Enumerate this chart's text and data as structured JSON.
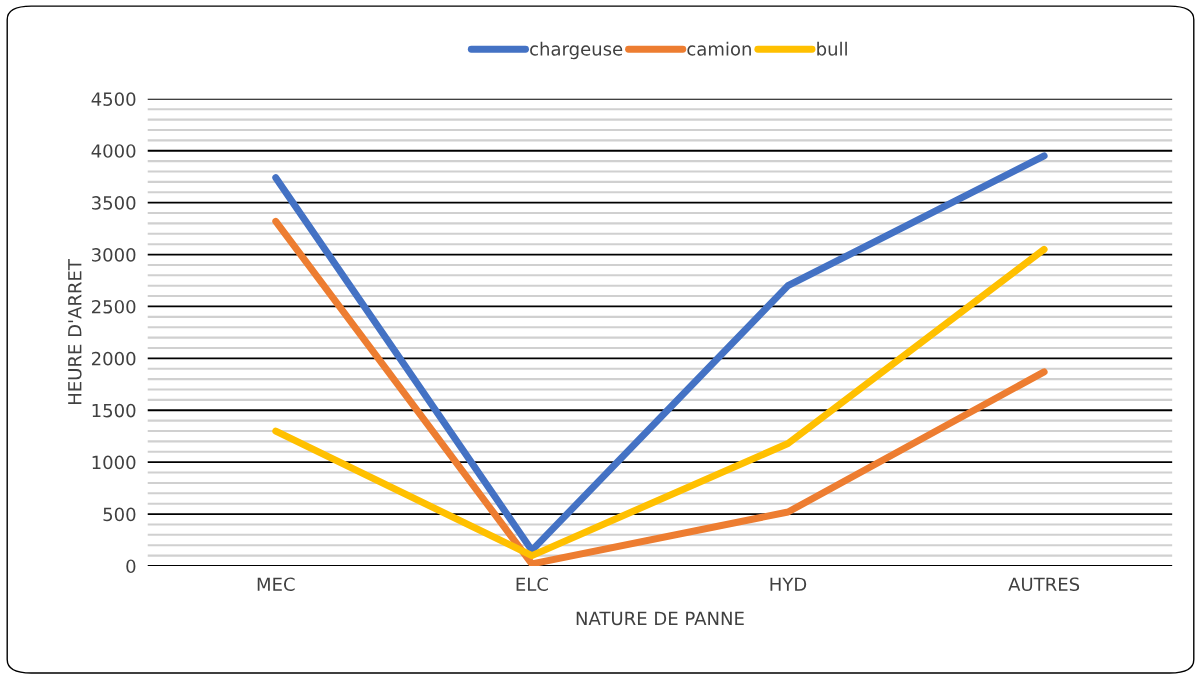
{
  "chart_data": {
    "type": "line",
    "categories": [
      "MEC",
      "ELC",
      "HYD",
      "AUTRES"
    ],
    "series": [
      {
        "name": "chargeuse",
        "color": "#4472c4",
        "values": [
          3740,
          150,
          2700,
          3950
        ]
      },
      {
        "name": "camion",
        "color": "#ed7d31",
        "values": [
          3320,
          20,
          520,
          1870
        ]
      },
      {
        "name": "bull",
        "color": "#ffc000",
        "values": [
          1300,
          100,
          1180,
          3050
        ]
      }
    ],
    "xlabel": "NATURE DE PANNE",
    "ylabel": "HEURE D'ARRET",
    "ylim": [
      0,
      4500
    ],
    "yticks": [
      0,
      {
        "value": 100,
        "label": null
      },
      {
        "value": 200,
        "label": null
      },
      {
        "value": 300,
        "label": null
      },
      {
        "value": 400,
        "label": null
      },
      500,
      {
        "value": 600,
        "label": null
      },
      {
        "value": 700,
        "label": null
      },
      {
        "value": 800,
        "label": null
      },
      {
        "value": 900,
        "label": null
      },
      1000,
      {
        "value": 1100,
        "label": null
      },
      {
        "value": 1200,
        "label": null
      },
      {
        "value": 1300,
        "label": null
      },
      {
        "value": 1400,
        "label": null
      },
      1500,
      {
        "value": 1600,
        "label": null
      },
      {
        "value": 1700,
        "label": null
      },
      {
        "value": 1800,
        "label": null
      },
      {
        "value": 1900,
        "label": null
      },
      2000,
      {
        "value": 2100,
        "label": null
      },
      {
        "value": 2200,
        "label": null
      },
      {
        "value": 2300,
        "label": null
      },
      {
        "value": 2400,
        "label": null
      },
      2500,
      {
        "value": 2600,
        "label": null
      },
      {
        "value": 2700,
        "label": null
      },
      {
        "value": 2800,
        "label": null
      },
      {
        "value": 2900,
        "label": null
      },
      3000,
      {
        "value": 3100,
        "label": null
      },
      {
        "value": 3200,
        "label": null
      },
      {
        "value": 3300,
        "label": null
      },
      {
        "value": 3400,
        "label": null
      },
      3500,
      {
        "value": 3600,
        "label": null
      },
      {
        "value": 3700,
        "label": null
      },
      {
        "value": 3800,
        "label": null
      },
      {
        "value": 3900,
        "label": null
      },
      4000,
      {
        "value": 4100,
        "label": null
      },
      {
        "value": 4200,
        "label": null
      },
      {
        "value": 4300,
        "label": null
      },
      {
        "value": 4400,
        "label": null
      },
      4500
    ],
    "grid": "y",
    "legend": "top",
    "marker": "none",
    "line_style": "solid"
  }
}
